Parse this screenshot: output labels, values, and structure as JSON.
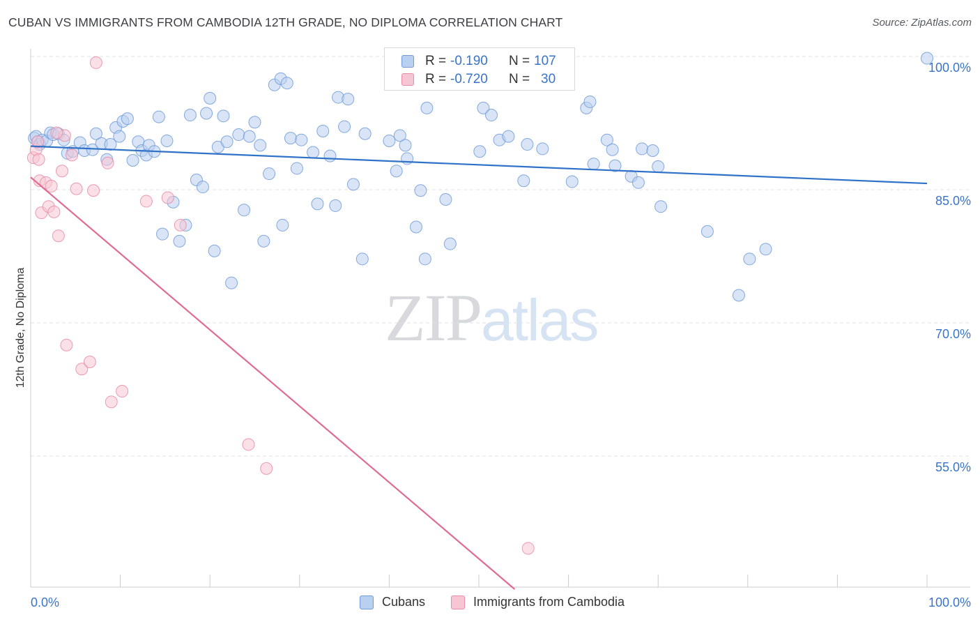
{
  "title": "CUBAN VS IMMIGRANTS FROM CAMBODIA 12TH GRADE, NO DIPLOMA CORRELATION CHART",
  "source": "Source: ZipAtlas.com",
  "watermark": {
    "zip": "ZIP",
    "atlas": "atlas"
  },
  "legend": {
    "rows": [
      {
        "r_label": "R =",
        "r_value": "-0.190",
        "n_label": "N =",
        "n_value": "107"
      },
      {
        "r_label": "R =",
        "r_value": "-0.720",
        "n_label": "N =",
        "n_value": "30"
      }
    ]
  },
  "bottom_legend": {
    "cubans": "Cubans",
    "cambodia": "Immigrants from Cambodia"
  },
  "colors": {
    "cubans_fill": "#b9d0f0",
    "cubans_stroke": "#6e9bd8",
    "cubans_line": "#2f72c8",
    "cambodia_fill": "#f7c6d4",
    "cambodia_stroke": "#e88aa8",
    "cambodia_line": "#e06b95",
    "tick_label": "#3a74c8",
    "grid": "#dfe2e5"
  },
  "chart_data": {
    "type": "scatter",
    "title": "CUBAN VS IMMIGRANTS FROM CAMBODIA 12TH GRADE, NO DIPLOMA CORRELATION CHART",
    "xlabel": "",
    "ylabel": "12th Grade, No Diploma",
    "xlim": [
      0,
      100
    ],
    "ylim": [
      40,
      103
    ],
    "x_tick_labels": [
      {
        "value": 0,
        "label": "0.0%"
      },
      {
        "value": 100,
        "label": "100.0%"
      }
    ],
    "y_ticks": [
      {
        "value": 100,
        "label": "100.0%"
      },
      {
        "value": 85,
        "label": "85.0%"
      },
      {
        "value": 70,
        "label": "70.0%"
      },
      {
        "value": 55,
        "label": "55.0%"
      }
    ],
    "grid": true,
    "legend_position": "top-center",
    "series": [
      {
        "name": "Cubans",
        "r": -0.19,
        "n": 107,
        "trend": {
          "x": [
            0,
            100
          ],
          "y": [
            89.9,
            85.7
          ]
        },
        "points": [
          [
            0.4,
            90.8
          ],
          [
            0.6,
            91.0
          ],
          [
            0.8,
            90.4
          ],
          [
            1.0,
            90.1
          ],
          [
            1.3,
            90.6
          ],
          [
            1.8,
            90.5
          ],
          [
            2.2,
            91.4
          ],
          [
            2.5,
            91.2
          ],
          [
            3.1,
            91.3
          ],
          [
            3.7,
            90.6
          ],
          [
            4.1,
            89.1
          ],
          [
            4.7,
            89.3
          ],
          [
            5.5,
            90.3
          ],
          [
            6.0,
            89.4
          ],
          [
            6.9,
            89.5
          ],
          [
            7.3,
            91.3
          ],
          [
            7.9,
            90.2
          ],
          [
            8.5,
            88.4
          ],
          [
            8.9,
            90.1
          ],
          [
            9.5,
            92.0
          ],
          [
            9.9,
            91.0
          ],
          [
            10.3,
            92.7
          ],
          [
            10.8,
            93.0
          ],
          [
            11.4,
            88.3
          ],
          [
            12.0,
            90.4
          ],
          [
            12.4,
            89.4
          ],
          [
            12.9,
            88.9
          ],
          [
            13.2,
            90.0
          ],
          [
            13.8,
            89.3
          ],
          [
            14.3,
            93.2
          ],
          [
            14.7,
            80.0
          ],
          [
            15.2,
            90.5
          ],
          [
            15.9,
            83.6
          ],
          [
            16.6,
            79.2
          ],
          [
            17.3,
            81.0
          ],
          [
            17.8,
            93.4
          ],
          [
            18.5,
            86.1
          ],
          [
            19.2,
            85.3
          ],
          [
            19.6,
            93.6
          ],
          [
            20.0,
            95.3
          ],
          [
            20.5,
            78.1
          ],
          [
            20.9,
            89.8
          ],
          [
            21.5,
            93.3
          ],
          [
            21.9,
            90.4
          ],
          [
            22.4,
            74.5
          ],
          [
            23.2,
            91.2
          ],
          [
            23.8,
            82.7
          ],
          [
            24.4,
            91.0
          ],
          [
            25.0,
            92.6
          ],
          [
            25.6,
            90.0
          ],
          [
            26.0,
            79.2
          ],
          [
            26.6,
            86.8
          ],
          [
            27.2,
            96.8
          ],
          [
            27.9,
            97.5
          ],
          [
            28.1,
            81.0
          ],
          [
            28.6,
            97.0
          ],
          [
            29.0,
            90.8
          ],
          [
            29.7,
            87.4
          ],
          [
            30.2,
            90.6
          ],
          [
            31.5,
            89.2
          ],
          [
            32.0,
            83.4
          ],
          [
            32.6,
            91.6
          ],
          [
            33.4,
            88.8
          ],
          [
            34.0,
            83.2
          ],
          [
            34.3,
            95.4
          ],
          [
            35.0,
            92.1
          ],
          [
            35.4,
            95.2
          ],
          [
            36.0,
            85.6
          ],
          [
            37.0,
            77.2
          ],
          [
            37.3,
            91.3
          ],
          [
            40.0,
            90.5
          ],
          [
            40.8,
            87.1
          ],
          [
            41.2,
            91.1
          ],
          [
            41.8,
            90.0
          ],
          [
            42.0,
            88.5
          ],
          [
            43.0,
            80.8
          ],
          [
            43.5,
            84.9
          ],
          [
            44.0,
            77.2
          ],
          [
            44.2,
            94.2
          ],
          [
            46.3,
            83.9
          ],
          [
            46.8,
            78.9
          ],
          [
            50.1,
            89.3
          ],
          [
            50.5,
            94.2
          ],
          [
            51.4,
            93.4
          ],
          [
            52.3,
            90.6
          ],
          [
            53.3,
            91.0
          ],
          [
            55.0,
            86.0
          ],
          [
            55.4,
            90.1
          ],
          [
            57.1,
            89.6
          ],
          [
            60.4,
            85.9
          ],
          [
            62.0,
            94.2
          ],
          [
            62.4,
            94.9
          ],
          [
            62.8,
            87.9
          ],
          [
            64.3,
            90.6
          ],
          [
            64.9,
            89.5
          ],
          [
            65.2,
            87.7
          ],
          [
            67.0,
            86.5
          ],
          [
            67.8,
            85.8
          ],
          [
            68.2,
            89.6
          ],
          [
            69.4,
            89.4
          ],
          [
            70.0,
            87.6
          ],
          [
            70.3,
            83.1
          ],
          [
            75.5,
            80.3
          ],
          [
            79.0,
            73.1
          ],
          [
            80.2,
            77.2
          ],
          [
            82.0,
            78.3
          ],
          [
            100.0,
            99.8
          ]
        ]
      },
      {
        "name": "Immigrants from Cambodia",
        "r": -0.72,
        "n": 30,
        "trend": {
          "x": [
            0,
            54
          ],
          "y": [
            86.4,
            40
          ]
        },
        "points": [
          [
            0.3,
            88.6
          ],
          [
            0.6,
            89.5
          ],
          [
            0.8,
            90.4
          ],
          [
            1.0,
            86.0
          ],
          [
            1.2,
            82.4
          ],
          [
            1.7,
            85.8
          ],
          [
            2.0,
            83.1
          ],
          [
            2.3,
            85.4
          ],
          [
            2.6,
            82.5
          ],
          [
            3.1,
            79.8
          ],
          [
            3.5,
            87.1
          ],
          [
            3.8,
            91.1
          ],
          [
            4.0,
            67.5
          ],
          [
            4.6,
            88.9
          ],
          [
            5.1,
            85.1
          ],
          [
            5.7,
            64.8
          ],
          [
            6.6,
            65.6
          ],
          [
            7.0,
            84.9
          ],
          [
            7.3,
            99.3
          ],
          [
            8.6,
            88.0
          ],
          [
            9.0,
            61.1
          ],
          [
            10.2,
            62.3
          ],
          [
            12.9,
            83.7
          ],
          [
            15.3,
            84.1
          ],
          [
            16.7,
            81.0
          ],
          [
            24.3,
            56.3
          ],
          [
            26.3,
            53.6
          ],
          [
            55.5,
            44.6
          ],
          [
            0.9,
            88.4
          ],
          [
            2.9,
            91.4
          ]
        ]
      }
    ]
  }
}
